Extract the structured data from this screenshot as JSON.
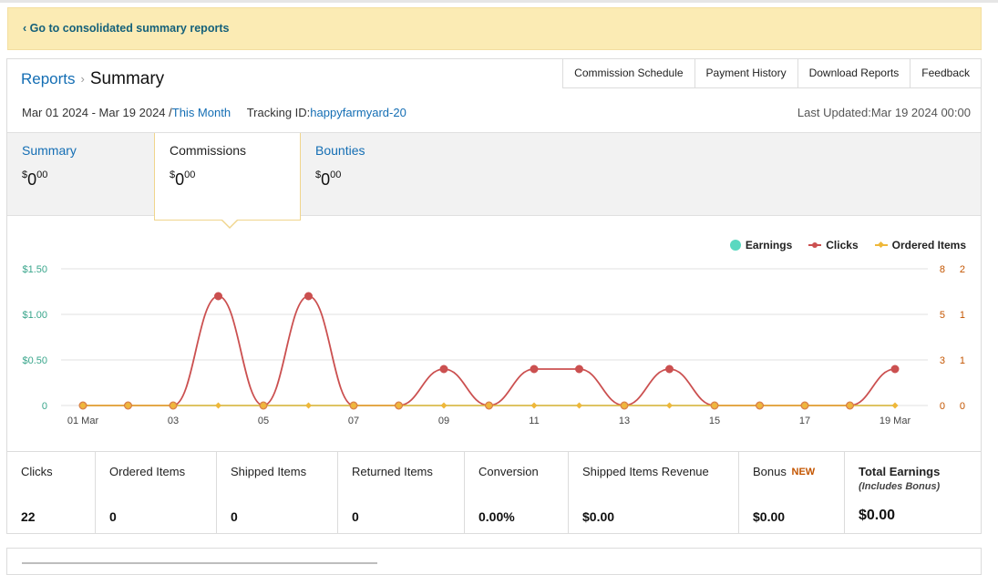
{
  "banner": {
    "link_label": "‹ Go to consolidated summary reports"
  },
  "breadcrumb": {
    "parent": "Reports",
    "separator": "›",
    "current": "Summary"
  },
  "top_tabs": [
    "Commission Schedule",
    "Payment History",
    "Download Reports",
    "Feedback"
  ],
  "date_row": {
    "range": "Mar 01 2024 - Mar 19 2024 /",
    "period_link": "This Month",
    "tracking_label": "Tracking ID:",
    "tracking_id": "happyfarmyard-20",
    "last_updated": "Last Updated:Mar 19 2024 00:00"
  },
  "summary_tabs": [
    {
      "label": "Summary",
      "currency": "$",
      "whole": "0",
      "cents": "00",
      "active": false
    },
    {
      "label": "Commissions",
      "currency": "$",
      "whole": "0",
      "cents": "00",
      "active": true
    },
    {
      "label": "Bounties",
      "currency": "$",
      "whole": "0",
      "cents": "00",
      "active": false
    }
  ],
  "legend": {
    "earnings": "Earnings",
    "clicks": "Clicks",
    "ordered_items": "Ordered Items"
  },
  "colors": {
    "earnings": "#5ad8c0",
    "clicks": "#cb5050",
    "ordered_items": "#efb83a",
    "link": "#146eb4",
    "left_axis": "#3aa68c",
    "right_axis": "#c45500"
  },
  "chart_data": {
    "type": "line",
    "x": [
      "01 Mar",
      "02 Mar",
      "03 Mar",
      "04 Mar",
      "05 Mar",
      "06 Mar",
      "07 Mar",
      "08 Mar",
      "09 Mar",
      "10 Mar",
      "11 Mar",
      "12 Mar",
      "13 Mar",
      "14 Mar",
      "15 Mar",
      "16 Mar",
      "17 Mar",
      "18 Mar",
      "19 Mar"
    ],
    "x_tick_labels": [
      "01 Mar",
      "03",
      "05",
      "07",
      "09",
      "11",
      "13",
      "15",
      "17",
      "19 Mar"
    ],
    "left_axis": {
      "ticks": [
        "$1.50",
        "$1.00",
        "$0.50",
        "0"
      ],
      "ylim": [
        0,
        1.5
      ]
    },
    "right_axis_clicks": {
      "ticks": [
        "8",
        "5",
        "3",
        "0"
      ]
    },
    "right_axis_items": {
      "ticks": [
        "2",
        "1",
        "1",
        "0"
      ]
    },
    "series": [
      {
        "name": "Earnings",
        "axis": "left",
        "values": [
          0,
          0,
          0,
          0,
          0,
          0,
          0,
          0,
          0,
          0,
          0,
          0,
          0,
          0,
          0,
          0,
          0,
          0,
          0
        ]
      },
      {
        "name": "Clicks",
        "axis": "right_clicks",
        "values": [
          0,
          0,
          0,
          6,
          0,
          6,
          0,
          0,
          2,
          0,
          2,
          2,
          0,
          2,
          0,
          0,
          0,
          0,
          2
        ]
      },
      {
        "name": "Ordered Items",
        "axis": "right_items",
        "values": [
          0,
          0,
          0,
          0,
          0,
          0,
          0,
          0,
          0,
          0,
          0,
          0,
          0,
          0,
          0,
          0,
          0,
          0,
          0
        ]
      }
    ],
    "grid": true,
    "legend_position": "top-right"
  },
  "stats": [
    {
      "label": "Clicks",
      "value": "22"
    },
    {
      "label": "Ordered Items",
      "value": "0"
    },
    {
      "label": "Shipped Items",
      "value": "0"
    },
    {
      "label": "Returned Items",
      "value": "0"
    },
    {
      "label": "Conversion",
      "value": "0.00%"
    },
    {
      "label": "Shipped Items Revenue",
      "value": "$0.00"
    },
    {
      "label": "Bonus",
      "badge": "NEW",
      "value": "$0.00"
    },
    {
      "label": "Total Earnings",
      "sublabel": "(Includes Bonus)",
      "value": "$0.00"
    }
  ]
}
